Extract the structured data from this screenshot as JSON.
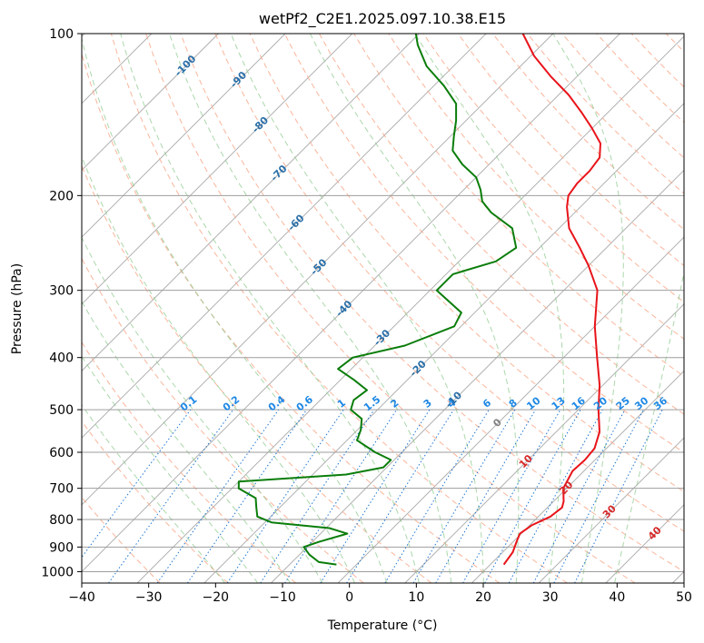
{
  "chart_data": {
    "type": "line",
    "subtype": "skew-T log-P diagram",
    "title": "wetPf2_C2E1.2025.097.10.38.E15",
    "xlabel": "Temperature (°C)",
    "ylabel": "Pressure (hPa)",
    "xlim": [
      -40,
      50
    ],
    "ylim_pressure_hpa": [
      1050,
      100
    ],
    "y_scale": "log",
    "x_ticks": [
      -40,
      -30,
      -20,
      -10,
      0,
      10,
      20,
      30,
      40,
      50
    ],
    "y_ticks": [
      1000,
      900,
      800,
      700,
      600,
      500,
      400,
      300,
      200,
      100
    ],
    "grid": true,
    "series": [
      {
        "color": "#e8141a",
        "points": [
          {
            "p": 970,
            "t": 22
          },
          {
            "p": 920,
            "t": 21.5
          },
          {
            "p": 880,
            "t": 20.5
          },
          {
            "p": 850,
            "t": 19.8
          },
          {
            "p": 820,
            "t": 20.3
          },
          {
            "p": 790,
            "t": 21.8
          },
          {
            "p": 760,
            "t": 22.2
          },
          {
            "p": 740,
            "t": 21.5
          },
          {
            "p": 700,
            "t": 19.5
          },
          {
            "p": 650,
            "t": 18.3
          },
          {
            "p": 620,
            "t": 18.5
          },
          {
            "p": 590,
            "t": 18.2
          },
          {
            "p": 550,
            "t": 16.5
          },
          {
            "p": 500,
            "t": 13.0
          },
          {
            "p": 450,
            "t": 9.5
          },
          {
            "p": 400,
            "t": 5.0
          },
          {
            "p": 350,
            "t": 0.0
          },
          {
            "p": 300,
            "t": -5.0
          },
          {
            "p": 270,
            "t": -10.0
          },
          {
            "p": 250,
            "t": -14.0
          },
          {
            "p": 230,
            "t": -18.5
          },
          {
            "p": 210,
            "t": -22.0
          },
          {
            "p": 200,
            "t": -23.5
          },
          {
            "p": 190,
            "t": -24.0
          },
          {
            "p": 180,
            "t": -24.0
          },
          {
            "p": 170,
            "t": -24.5
          },
          {
            "p": 160,
            "t": -26.5
          },
          {
            "p": 150,
            "t": -30.0
          },
          {
            "p": 140,
            "t": -34.0
          },
          {
            "p": 130,
            "t": -38.5
          },
          {
            "p": 120,
            "t": -44.0
          },
          {
            "p": 110,
            "t": -49.5
          },
          {
            "p": 100,
            "t": -54.5
          }
        ]
      },
      {
        "color": "#0a7d0a",
        "points": [
          {
            "p": 970,
            "t": -3
          },
          {
            "p": 960,
            "t": -6
          },
          {
            "p": 930,
            "t": -8.5
          },
          {
            "p": 900,
            "t": -10.5
          },
          {
            "p": 880,
            "t": -9.0
          },
          {
            "p": 850,
            "t": -6.0
          },
          {
            "p": 830,
            "t": -9.5
          },
          {
            "p": 810,
            "t": -19.0
          },
          {
            "p": 790,
            "t": -22.0
          },
          {
            "p": 760,
            "t": -23.5
          },
          {
            "p": 730,
            "t": -25.0
          },
          {
            "p": 700,
            "t": -29.0
          },
          {
            "p": 680,
            "t": -30.0
          },
          {
            "p": 660,
            "t": -15.0
          },
          {
            "p": 640,
            "t": -10.5
          },
          {
            "p": 620,
            "t": -10.5
          },
          {
            "p": 600,
            "t": -14.0
          },
          {
            "p": 570,
            "t": -18.5
          },
          {
            "p": 545,
            "t": -19.5
          },
          {
            "p": 520,
            "t": -21.0
          },
          {
            "p": 500,
            "t": -24.0
          },
          {
            "p": 480,
            "t": -25.0
          },
          {
            "p": 460,
            "t": -24.5
          },
          {
            "p": 440,
            "t": -28.0
          },
          {
            "p": 420,
            "t": -32.0
          },
          {
            "p": 400,
            "t": -31.5
          },
          {
            "p": 380,
            "t": -25.5
          },
          {
            "p": 350,
            "t": -21.0
          },
          {
            "p": 330,
            "t": -22.0
          },
          {
            "p": 300,
            "t": -29.0
          },
          {
            "p": 280,
            "t": -29.0
          },
          {
            "p": 265,
            "t": -24.5
          },
          {
            "p": 250,
            "t": -23.5
          },
          {
            "p": 230,
            "t": -27.0
          },
          {
            "p": 215,
            "t": -32.5
          },
          {
            "p": 205,
            "t": -35.5
          },
          {
            "p": 195,
            "t": -37.5
          },
          {
            "p": 185,
            "t": -40.0
          },
          {
            "p": 175,
            "t": -44.0
          },
          {
            "p": 165,
            "t": -47.5
          },
          {
            "p": 155,
            "t": -49.5
          },
          {
            "p": 145,
            "t": -51.5
          },
          {
            "p": 135,
            "t": -54.0
          },
          {
            "p": 125,
            "t": -58.5
          },
          {
            "p": 115,
            "t": -64.0
          },
          {
            "p": 105,
            "t": -68.5
          },
          {
            "p": 100,
            "t": -70.5
          }
        ]
      }
    ],
    "background_lines": {
      "skewed_isotherm_interval_c": 10,
      "dry_adiabat_color": "#f9a889",
      "moist_adiabat_color": "#8fc98f",
      "mixing_ratio_color": "#1f77d4",
      "isobar_color": "#9e9e9e"
    },
    "isotherm_labels": [
      "-100",
      "-90",
      "-80",
      "-70",
      "-60",
      "-50",
      "-40",
      "-30",
      "-20",
      "-10",
      "0",
      "10",
      "20",
      "30",
      "40"
    ],
    "isotherm_label_colors": {
      "cold": "#2a6fa8",
      "zero": "#808080",
      "warm": "#d62728"
    },
    "mixing_ratio_labels": [
      "0.1",
      "0.2",
      "0.4",
      "0.6",
      "1",
      "1.5",
      "2",
      "3",
      "4",
      "6",
      "8",
      "10",
      "13",
      "16",
      "20",
      "25",
      "30",
      "36"
    ],
    "mixing_ratio_label_color": "#1e88e5"
  }
}
